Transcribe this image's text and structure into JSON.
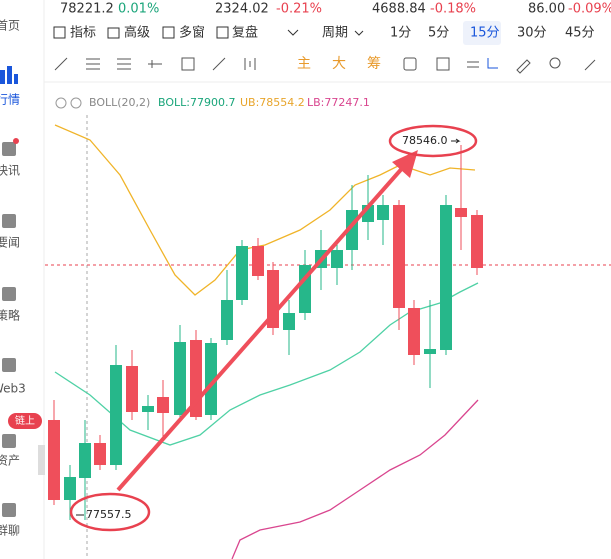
{
  "tickers": [
    {
      "price": "78221.2",
      "change": "0.01%"
    },
    {
      "price": "2324.02",
      "change": "-0.21%"
    },
    {
      "price": "4688.84",
      "change": "-0.18%"
    },
    {
      "price": "86.00",
      "change": "-0.09%"
    }
  ],
  "sidebar": [
    "首页",
    "行情",
    "快讯",
    "要闻",
    "策略",
    "Web3",
    "资产",
    "群聊"
  ],
  "sidebar_badge": "链上",
  "toolbar": {
    "tools": [
      "指标",
      "高级",
      "多窗",
      "复盘"
    ],
    "period": "周期",
    "intervals": [
      "1分",
      "5分",
      "15分",
      "30分",
      "45分"
    ]
  },
  "drawing_tools": [
    "主",
    "大",
    "筹"
  ],
  "indicator": {
    "name": "BOLL(20,2)",
    "boll": "BOLL:77900.7",
    "ub": "UB:78554.2",
    "lb": "LB:77247.1"
  },
  "annotations": {
    "high": "78546.0",
    "low": "77557.5"
  }
}
